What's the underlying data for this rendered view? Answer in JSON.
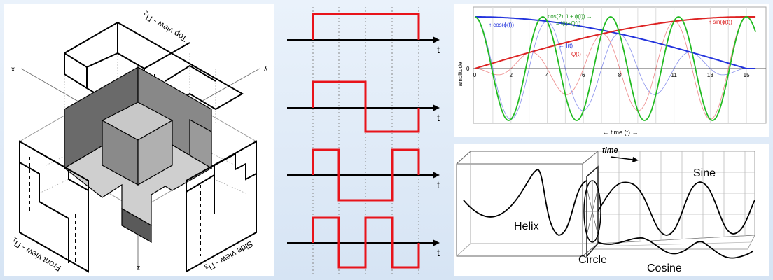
{
  "left_projection": {
    "axis_x": "x",
    "axis_y": "y",
    "axis_z": "z",
    "top_view": "Top view - Π",
    "top_view_sub": "2",
    "front_view": "Front view - Π",
    "front_view_sub": "1",
    "side_view": "Side view - Π",
    "side_view_sub": "3"
  },
  "waveforms": {
    "t_label": "t",
    "line_color": "#e8131a"
  },
  "iq_chart": {
    "type": "line",
    "ylabel": "amplitude",
    "xlabel": "← time (t) →",
    "zero_tick": "0",
    "x_ticks": [
      "0",
      "2",
      "4",
      "6",
      "8",
      "11",
      "13",
      "15"
    ],
    "annotations": {
      "cos_phi": "↑ cos(ϕ(t))",
      "sin_phi": "↑ sin(ϕ(t))",
      "sum_line1": "← cos(2πft + ϕ(t)) →",
      "sum_line2": "= I(t)+Q(t)",
      "i_label": "← I(t)",
      "q_label": "Q(t) →"
    },
    "colors": {
      "cos": "#2233dd",
      "sin": "#dd2222",
      "sum": "#22bb22"
    }
  },
  "helix_diagram": {
    "time_label": "time",
    "sine_label": "Sine",
    "helix_label": "Helix",
    "circle_label": "Circle",
    "cosine_label": "Cosine"
  }
}
